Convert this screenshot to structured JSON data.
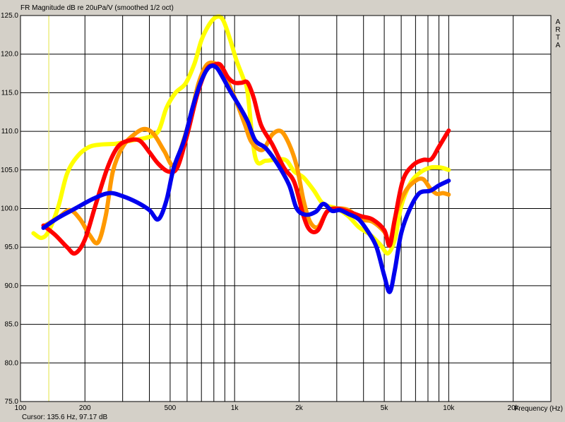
{
  "header": {
    "title": "FR Magnitude dB re 20uPa/V (smoothed 1/2 oct)"
  },
  "brand": {
    "letters": [
      "A",
      "R",
      "T",
      "A"
    ]
  },
  "footer": {
    "cursor_readout": "Cursor: 135.6 Hz, 97.17 dB"
  },
  "colors": {
    "background": "#d4d0c8",
    "plot_background": "#ffffff",
    "grid": "#000000",
    "cursor_line": "#e8e860"
  },
  "cursor": {
    "frequency_hz": 135.6,
    "level_db": 97.17
  },
  "chart_data": {
    "type": "line",
    "title": "FR Magnitude dB re 20uPa/V (smoothed 1/2 oct)",
    "xlabel": "Frequency (Hz)",
    "ylabel": "",
    "x_scale": "log",
    "xlim": [
      100,
      30000
    ],
    "ylim": [
      75,
      125
    ],
    "grid": true,
    "x_tick_labels": [
      {
        "value": 100,
        "label": "100"
      },
      {
        "value": 200,
        "label": "200"
      },
      {
        "value": 500,
        "label": "500"
      },
      {
        "value": 1000,
        "label": "1k"
      },
      {
        "value": 2000,
        "label": "2k"
      },
      {
        "value": 5000,
        "label": "5k"
      },
      {
        "value": 10000,
        "label": "10k"
      },
      {
        "value": 20000,
        "label": "20k"
      }
    ],
    "y_tick_labels": [
      "75.0",
      "80.0",
      "85.0",
      "90.0",
      "95.0",
      "100.0",
      "105.0",
      "110.0",
      "115.0",
      "120.0",
      "125.0"
    ],
    "series": [
      {
        "color": "#ffff00",
        "points": [
          [
            115,
            96.8
          ],
          [
            125,
            96.2
          ],
          [
            135,
            97.0
          ],
          [
            150,
            100.2
          ],
          [
            165,
            104.5
          ],
          [
            185,
            106.8
          ],
          [
            210,
            108.0
          ],
          [
            240,
            108.3
          ],
          [
            280,
            108.4
          ],
          [
            330,
            108.8
          ],
          [
            390,
            109.2
          ],
          [
            440,
            110.0
          ],
          [
            480,
            113.0
          ],
          [
            530,
            115.0
          ],
          [
            590,
            116.2
          ],
          [
            650,
            118.8
          ],
          [
            700,
            121.8
          ],
          [
            760,
            123.8
          ],
          [
            820,
            124.8
          ],
          [
            880,
            124.5
          ],
          [
            950,
            122.0
          ],
          [
            1020,
            119.2
          ],
          [
            1100,
            116.8
          ],
          [
            1150,
            115.0
          ],
          [
            1250,
            106.6
          ],
          [
            1400,
            106.2
          ],
          [
            1600,
            106.4
          ],
          [
            1750,
            106.2
          ],
          [
            1900,
            104.8
          ],
          [
            2100,
            104.0
          ],
          [
            2350,
            102.3
          ],
          [
            2550,
            100.8
          ],
          [
            2750,
            100.3
          ],
          [
            3000,
            100.0
          ],
          [
            3400,
            99.0
          ],
          [
            3800,
            97.6
          ],
          [
            4300,
            96.6
          ],
          [
            4800,
            95.3
          ],
          [
            5200,
            94.2
          ],
          [
            5600,
            96.0
          ],
          [
            6000,
            100.3
          ],
          [
            6600,
            103.2
          ],
          [
            7300,
            104.6
          ],
          [
            8200,
            105.3
          ],
          [
            9200,
            105.3
          ],
          [
            10000,
            105.0
          ]
        ]
      },
      {
        "color": "#ff9900",
        "points": [
          [
            130,
            97.8
          ],
          [
            150,
            98.8
          ],
          [
            170,
            99.8
          ],
          [
            190,
            98.6
          ],
          [
            210,
            96.6
          ],
          [
            230,
            95.6
          ],
          [
            250,
            99.0
          ],
          [
            270,
            104.8
          ],
          [
            300,
            108.0
          ],
          [
            340,
            109.6
          ],
          [
            380,
            110.3
          ],
          [
            420,
            109.6
          ],
          [
            470,
            107.4
          ],
          [
            520,
            105.6
          ],
          [
            580,
            109.0
          ],
          [
            630,
            112.5
          ],
          [
            680,
            116.3
          ],
          [
            740,
            118.6
          ],
          [
            810,
            118.8
          ],
          [
            870,
            118.0
          ],
          [
            950,
            115.8
          ],
          [
            1030,
            113.5
          ],
          [
            1120,
            110.8
          ],
          [
            1200,
            108.6
          ],
          [
            1350,
            107.6
          ],
          [
            1500,
            109.6
          ],
          [
            1650,
            110.0
          ],
          [
            1800,
            108.3
          ],
          [
            1950,
            105.5
          ],
          [
            2100,
            101.0
          ],
          [
            2250,
            98.3
          ],
          [
            2450,
            97.6
          ],
          [
            2700,
            99.6
          ],
          [
            3000,
            100.0
          ],
          [
            3400,
            99.8
          ],
          [
            3900,
            98.6
          ],
          [
            4400,
            98.3
          ],
          [
            5000,
            97.0
          ],
          [
            5300,
            95.6
          ],
          [
            5700,
            99.5
          ],
          [
            6300,
            102.3
          ],
          [
            7000,
            103.6
          ],
          [
            7600,
            103.8
          ],
          [
            8200,
            102.6
          ],
          [
            8800,
            101.9
          ],
          [
            9400,
            102.0
          ],
          [
            10000,
            101.8
          ]
        ]
      },
      {
        "color": "#ff0000",
        "points": [
          [
            128,
            97.8
          ],
          [
            145,
            96.6
          ],
          [
            165,
            95.0
          ],
          [
            180,
            94.2
          ],
          [
            200,
            96.0
          ],
          [
            225,
            100.6
          ],
          [
            255,
            105.3
          ],
          [
            285,
            108.0
          ],
          [
            320,
            108.8
          ],
          [
            360,
            108.8
          ],
          [
            400,
            107.3
          ],
          [
            440,
            105.8
          ],
          [
            490,
            104.8
          ],
          [
            540,
            105.3
          ],
          [
            600,
            109.5
          ],
          [
            670,
            114.8
          ],
          [
            740,
            118.0
          ],
          [
            800,
            118.6
          ],
          [
            860,
            118.6
          ],
          [
            930,
            117.0
          ],
          [
            1000,
            116.3
          ],
          [
            1080,
            116.3
          ],
          [
            1150,
            116.3
          ],
          [
            1230,
            114.3
          ],
          [
            1330,
            110.8
          ],
          [
            1500,
            108.3
          ],
          [
            1700,
            105.3
          ],
          [
            1900,
            103.4
          ],
          [
            2100,
            99.0
          ],
          [
            2250,
            97.2
          ],
          [
            2450,
            97.2
          ],
          [
            2700,
            99.6
          ],
          [
            3000,
            100.0
          ],
          [
            3400,
            99.6
          ],
          [
            3900,
            99.0
          ],
          [
            4400,
            98.6
          ],
          [
            5000,
            97.2
          ],
          [
            5300,
            95.2
          ],
          [
            5600,
            98.6
          ],
          [
            6100,
            103.6
          ],
          [
            6800,
            105.6
          ],
          [
            7600,
            106.3
          ],
          [
            8300,
            106.4
          ],
          [
            9000,
            108.0
          ],
          [
            10000,
            110.1
          ]
        ]
      },
      {
        "color": "#0000ee",
        "points": [
          [
            128,
            97.5
          ],
          [
            150,
            98.8
          ],
          [
            180,
            100.0
          ],
          [
            220,
            101.3
          ],
          [
            260,
            102.0
          ],
          [
            300,
            101.6
          ],
          [
            350,
            100.8
          ],
          [
            400,
            99.8
          ],
          [
            440,
            98.6
          ],
          [
            480,
            101.0
          ],
          [
            520,
            105.3
          ],
          [
            580,
            108.8
          ],
          [
            640,
            113.3
          ],
          [
            700,
            116.6
          ],
          [
            760,
            118.3
          ],
          [
            820,
            118.3
          ],
          [
            880,
            117.0
          ],
          [
            950,
            115.3
          ],
          [
            1050,
            113.3
          ],
          [
            1150,
            111.3
          ],
          [
            1250,
            108.8
          ],
          [
            1400,
            107.8
          ],
          [
            1600,
            105.6
          ],
          [
            1800,
            103.0
          ],
          [
            1950,
            100.0
          ],
          [
            2150,
            99.2
          ],
          [
            2400,
            99.6
          ],
          [
            2600,
            100.6
          ],
          [
            2850,
            99.7
          ],
          [
            3100,
            99.8
          ],
          [
            3400,
            99.3
          ],
          [
            3800,
            98.6
          ],
          [
            4200,
            97.0
          ],
          [
            4600,
            95.0
          ],
          [
            5000,
            91.3
          ],
          [
            5300,
            89.2
          ],
          [
            5600,
            92.0
          ],
          [
            6000,
            96.8
          ],
          [
            6600,
            100.0
          ],
          [
            7300,
            102.0
          ],
          [
            8200,
            102.3
          ],
          [
            9000,
            103.0
          ],
          [
            10000,
            103.6
          ]
        ]
      }
    ]
  }
}
